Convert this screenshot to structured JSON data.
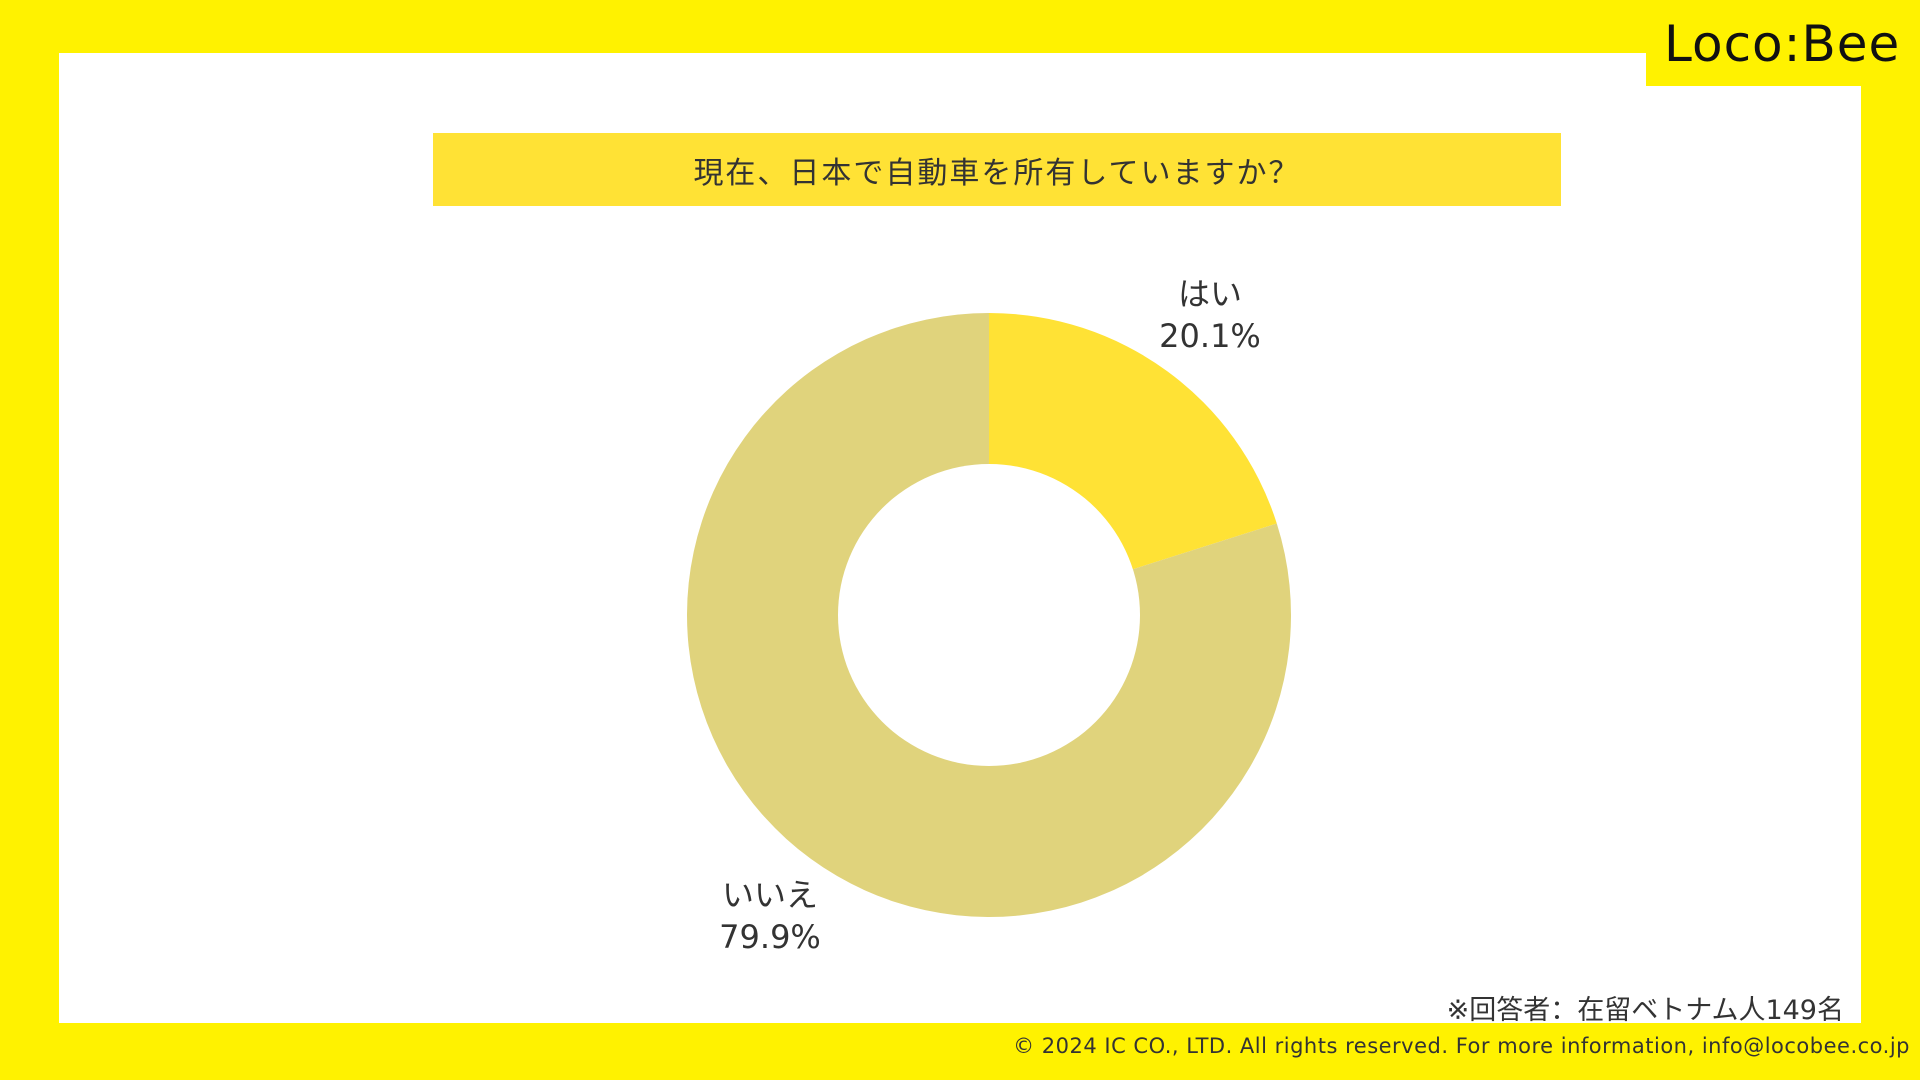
{
  "brand": {
    "logo_text": "Loco:Bee"
  },
  "chart_data": {
    "type": "pie",
    "donut": true,
    "title": "現在、日本で自動車を所有していますか？",
    "slices": [
      {
        "label": "はい",
        "value": 20.1,
        "value_label": "20.1%",
        "color": "#FFE235"
      },
      {
        "label": "いいえ",
        "value": 79.9,
        "value_label": "79.9%",
        "color": "#E0D37C"
      }
    ],
    "legend": "none"
  },
  "note": "※回答者：在留ベトナム人149名",
  "copyright": "© 2024 IC CO., LTD. All rights reserved. For more information, info@locobee.co.jp",
  "colors": {
    "frame": "#FFF200",
    "title_bar": "#FFE235",
    "panel": "#FFFFFF"
  }
}
